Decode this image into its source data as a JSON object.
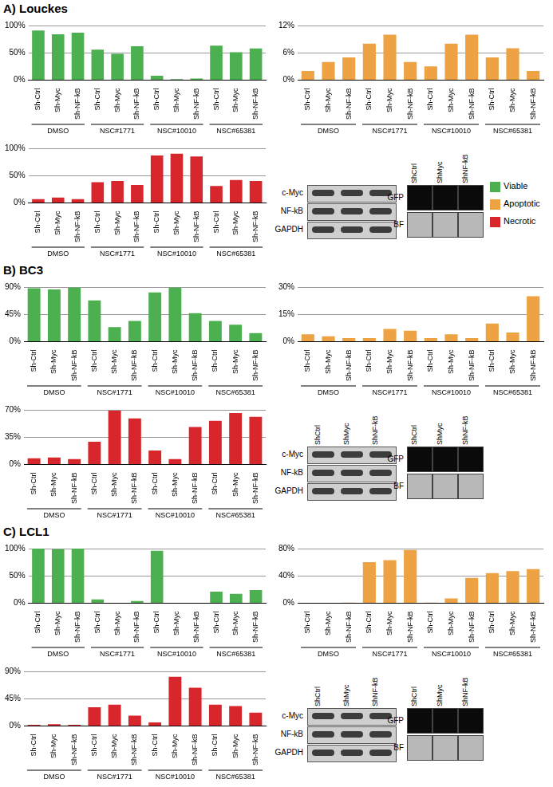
{
  "chart_data": [
    {
      "type": "bar",
      "categories": [
        "Sh-Ctrl",
        "Sh-Myc",
        "Sh-NF-kB",
        "Sh-Ctrl",
        "Sh-Myc",
        "Sh-NF-kB",
        "Sh-Ctrl",
        "Sh-Myc",
        "Sh-NF-kB",
        "Sh-Ctrl",
        "Sh-Myc",
        "Sh-NF-kB"
      ],
      "groups": [
        "DMSO",
        "NSC#1771",
        "NSC#10010",
        "NSC#65381"
      ],
      "values": [
        91,
        84,
        87,
        56,
        48,
        62,
        8,
        2,
        3,
        63,
        51,
        58
      ],
      "color": "#4caf50",
      "ylim": [
        0,
        100
      ],
      "yticks": [
        {
          "value": 0,
          "label": "0%"
        },
        {
          "value": 50,
          "label": "50%"
        },
        {
          "value": 100,
          "label": "100%"
        }
      ],
      "grid": true
    },
    {
      "type": "bar",
      "categories": [
        "Sh-Ctrl",
        "Sh-Myc",
        "Sh-NF-kB",
        "Sh-Ctrl",
        "Sh-Myc",
        "Sh-NF-kB",
        "Sh-Ctrl",
        "Sh-Myc",
        "Sh-NF-kB",
        "Sh-Ctrl",
        "Sh-Myc",
        "Sh-NF-kB"
      ],
      "groups": [
        "DMSO",
        "NSC#1771",
        "NSC#10010",
        "NSC#65381"
      ],
      "values": [
        2,
        4,
        5,
        8,
        10,
        4,
        3,
        8,
        10,
        5,
        7,
        2
      ],
      "color": "#eda344",
      "ylim": [
        0,
        12
      ],
      "yticks": [
        {
          "value": 0,
          "label": "0%"
        },
        {
          "value": 6,
          "label": "6%"
        },
        {
          "value": 12,
          "label": "12%"
        }
      ],
      "grid": true
    },
    {
      "type": "bar",
      "categories": [
        "Sh-Ctrl",
        "Sh-Myc",
        "Sh-NF-kB",
        "Sh-Ctrl",
        "Sh-Myc",
        "Sh-NF-kB",
        "Sh-Ctrl",
        "Sh-Myc",
        "Sh-NF-kB",
        "Sh-Ctrl",
        "Sh-Myc",
        "Sh-NF-kB"
      ],
      "groups": [
        "DMSO",
        "NSC#1771",
        "NSC#10010",
        "NSC#65381"
      ],
      "values": [
        7,
        10,
        7,
        38,
        40,
        33,
        87,
        90,
        85,
        31,
        42,
        40
      ],
      "color": "#d7262c",
      "ylim": [
        0,
        100
      ],
      "yticks": [
        {
          "value": 0,
          "label": "0%"
        },
        {
          "value": 50,
          "label": "50%"
        },
        {
          "value": 100,
          "label": "100%"
        }
      ],
      "grid": true
    },
    {
      "type": "bar",
      "categories": [
        "Sh-Ctrl",
        "Sh-Myc",
        "Sh-NF-kB",
        "Sh-Ctrl",
        "Sh-Myc",
        "Sh-NF-kB",
        "Sh-Ctrl",
        "Sh-Myc",
        "Sh-NF-kB",
        "Sh-Ctrl",
        "Sh-Myc",
        "Sh-NF-kB"
      ],
      "groups": [
        "DMSO",
        "NSC#1771",
        "NSC#10010",
        "NSC#65381"
      ],
      "values": [
        88,
        86,
        89,
        68,
        24,
        34,
        81,
        89,
        47,
        34,
        28,
        14
      ],
      "color": "#4caf50",
      "ylim": [
        0,
        90
      ],
      "yticks": [
        {
          "value": 0,
          "label": "0%"
        },
        {
          "value": 45,
          "label": "45%"
        },
        {
          "value": 90,
          "label": "90%"
        }
      ],
      "grid": true
    },
    {
      "type": "bar",
      "categories": [
        "Sh-Ctrl",
        "Sh-Myc",
        "Sh-NF-kB",
        "Sh-Ctrl",
        "Sh-Myc",
        "Sh-NF-kB",
        "Sh-Ctrl",
        "Sh-Myc",
        "Sh-NF-kB",
        "Sh-Ctrl",
        "Sh-Myc",
        "Sh-NF-kB"
      ],
      "groups": [
        "DMSO",
        "NSC#1771",
        "NSC#10010",
        "NSC#65381"
      ],
      "values": [
        4,
        3,
        2,
        2,
        7,
        6,
        2,
        4,
        2,
        10,
        5,
        25
      ],
      "color": "#eda344",
      "ylim": [
        0,
        30
      ],
      "yticks": [
        {
          "value": 0,
          "label": "0%"
        },
        {
          "value": 15,
          "label": "15%"
        },
        {
          "value": 30,
          "label": "30%"
        }
      ],
      "grid": true
    },
    {
      "type": "bar",
      "categories": [
        "Sh-Ctrl",
        "Sh-Myc",
        "Sh-NF-kB",
        "Sh-Ctrl",
        "Sh-Myc",
        "Sh-NF-kB",
        "Sh-Ctrl",
        "Sh-Myc",
        "Sh-NF-kB",
        "Sh-Ctrl",
        "Sh-Myc",
        "Sh-NF-kB"
      ],
      "groups": [
        "DMSO",
        "NSC#1771",
        "NSC#10010",
        "NSC#65381"
      ],
      "values": [
        8,
        9,
        7,
        29,
        69,
        59,
        18,
        7,
        48,
        56,
        66,
        61
      ],
      "color": "#d7262c",
      "ylim": [
        0,
        70
      ],
      "yticks": [
        {
          "value": 0,
          "label": "0%"
        },
        {
          "value": 35,
          "label": "35%"
        },
        {
          "value": 70,
          "label": "70%"
        }
      ],
      "grid": true
    },
    {
      "type": "bar",
      "categories": [
        "Sh-Ctrl",
        "Sh-Myc",
        "Sh-NF-kB",
        "Sh-Ctrl",
        "Sh-Myc",
        "Sh-NF-kB",
        "Sh-Ctrl",
        "Sh-Myc",
        "Sh-NF-kB",
        "Sh-Ctrl",
        "Sh-Myc",
        "Sh-NF-kB"
      ],
      "groups": [
        "DMSO",
        "NSC#1771",
        "NSC#10010",
        "NSC#65381"
      ],
      "values": [
        100,
        99,
        100,
        7,
        0,
        4,
        96,
        0,
        0,
        21,
        17,
        24
      ],
      "color": "#4caf50",
      "ylim": [
        0,
        100
      ],
      "yticks": [
        {
          "value": 0,
          "label": "0%"
        },
        {
          "value": 50,
          "label": "50%"
        },
        {
          "value": 100,
          "label": "100%"
        }
      ],
      "grid": true
    },
    {
      "type": "bar",
      "categories": [
        "Sh-Ctrl",
        "Sh-Myc",
        "Sh-NF-kB",
        "Sh-Ctrl",
        "Sh-Myc",
        "Sh-NF-kB",
        "Sh-Ctrl",
        "Sh-Myc",
        "Sh-NF-kB",
        "Sh-Ctrl",
        "Sh-Myc",
        "Sh-NF-kB"
      ],
      "groups": [
        "DMSO",
        "NSC#1771",
        "NSC#10010",
        "NSC#65381"
      ],
      "values": [
        0,
        0,
        1,
        60,
        63,
        78,
        1,
        7,
        37,
        44,
        47,
        50
      ],
      "color": "#eda344",
      "ylim": [
        0,
        80
      ],
      "yticks": [
        {
          "value": 0,
          "label": "0%"
        },
        {
          "value": 40,
          "label": "40%"
        },
        {
          "value": 80,
          "label": "80%"
        }
      ],
      "grid": true
    },
    {
      "type": "bar",
      "categories": [
        "Sh-Ctrl",
        "Sh-Myc",
        "Sh-NF-kB",
        "Sh-Ctrl",
        "Sh-Myc",
        "Sh-NF-kB",
        "Sh-Ctrl",
        "Sh-Myc",
        "Sh-NF-kB",
        "Sh-Ctrl",
        "Sh-Myc",
        "Sh-NF-kB"
      ],
      "groups": [
        "DMSO",
        "NSC#1771",
        "NSC#10010",
        "NSC#65381"
      ],
      "values": [
        2,
        3,
        2,
        31,
        35,
        17,
        6,
        81,
        63,
        35,
        33,
        22
      ],
      "color": "#d7262c",
      "ylim": [
        0,
        90
      ],
      "yticks": [
        {
          "value": 0,
          "label": "0%"
        },
        {
          "value": 45,
          "label": "45%"
        },
        {
          "value": 90,
          "label": "90%"
        }
      ],
      "grid": true
    }
  ],
  "panels": [
    {
      "title": "A) Louckes",
      "blot": {
        "rows": [
          "c-Myc",
          "NF-kB",
          "GAPDH"
        ]
      },
      "images": {
        "lanes": [
          "ShCtrl",
          "ShMyc",
          "ShNF-kB"
        ],
        "rows": [
          "GFP",
          "BF"
        ]
      }
    },
    {
      "title": "B) BC3",
      "blot": {
        "lanes": [
          "ShCtrl",
          "ShMyc",
          "ShNF-kB"
        ],
        "rows": [
          "c-Myc",
          "NF-kB",
          "GAPDH"
        ]
      },
      "images": {
        "lanes": [
          "ShCtrl",
          "ShMyc",
          "ShNF-kB"
        ],
        "rows": [
          "GFP",
          "BF"
        ]
      }
    },
    {
      "title": "C) LCL1",
      "blot": {
        "lanes": [
          "ShCtrl",
          "ShMyc",
          "ShNF-kB"
        ],
        "rows": [
          "c-Myc",
          "NF-kB",
          "GAPDH"
        ]
      },
      "images": {
        "lanes": [
          "ShCtrl",
          "ShMyc",
          "ShNF-kB"
        ],
        "rows": [
          "GFP",
          "BF"
        ]
      }
    }
  ],
  "color_key": [
    {
      "name": "Viable",
      "color": "#4caf50"
    },
    {
      "name": "Apoptotic",
      "color": "#eda344"
    },
    {
      "name": "Necrotic",
      "color": "#d7262c"
    }
  ]
}
